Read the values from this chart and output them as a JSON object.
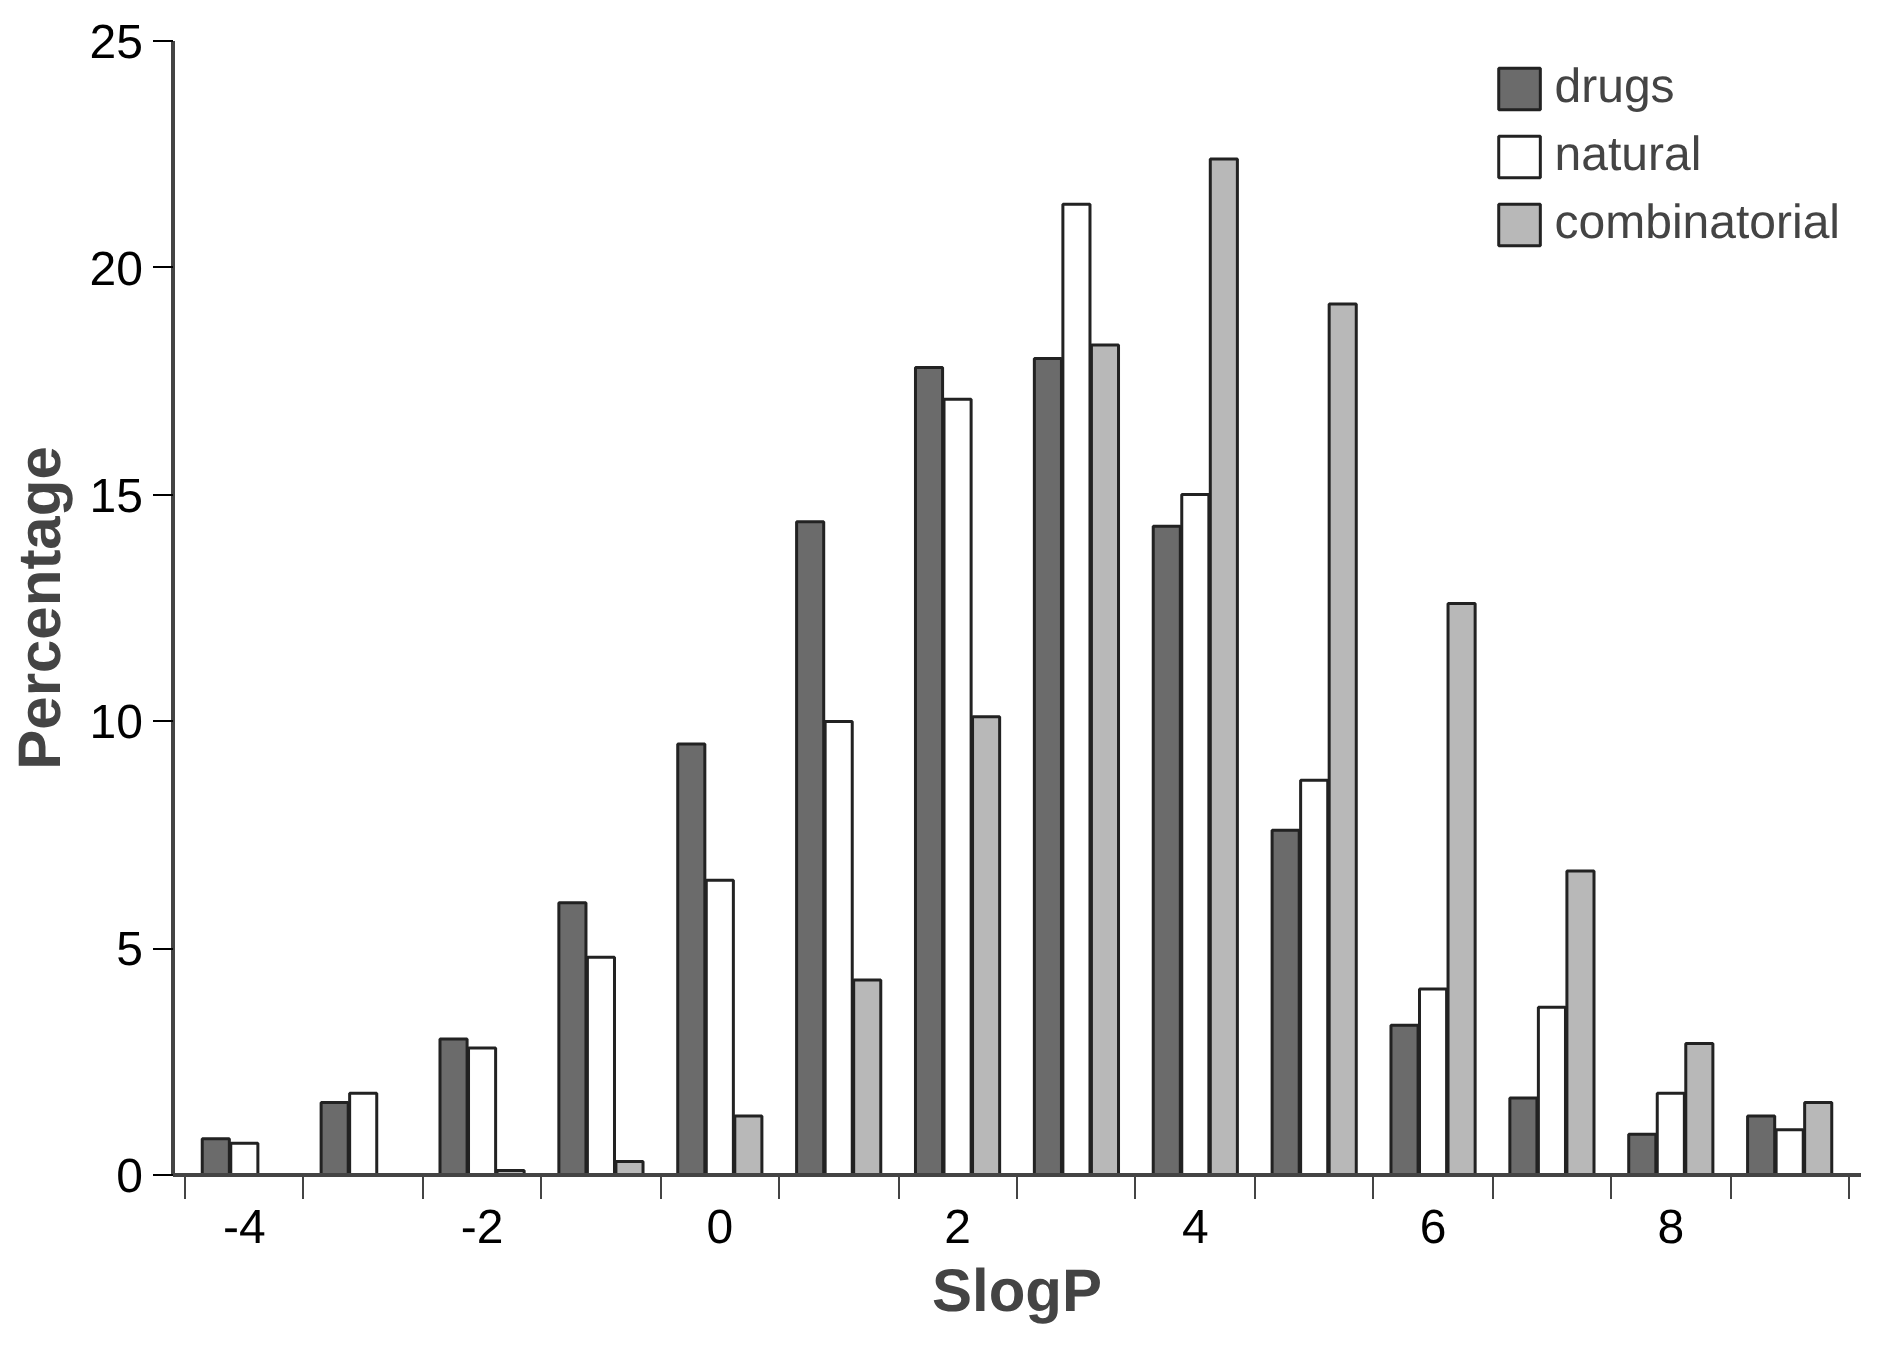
{
  "chart_data": {
    "type": "bar",
    "xlabel": "SlogP",
    "ylabel": "Percentage",
    "categories": [
      "-4",
      null,
      "-2",
      null,
      "0",
      null,
      "2",
      null,
      "4",
      null,
      "6",
      null,
      "8",
      null
    ],
    "series": [
      {
        "name": "drugs",
        "color": "#6b6b6b",
        "values": [
          0.8,
          1.6,
          3.0,
          6.0,
          9.5,
          14.4,
          17.8,
          18.0,
          14.3,
          7.6,
          3.3,
          1.7,
          0.9,
          1.3
        ]
      },
      {
        "name": "natural",
        "color": "#ffffff",
        "values": [
          0.7,
          1.8,
          2.8,
          4.8,
          6.5,
          10.0,
          17.1,
          21.4,
          15.0,
          8.7,
          4.1,
          3.7,
          1.8,
          1.0
        ]
      },
      {
        "name": "combinatorial",
        "color": "#b8b8b8",
        "values": [
          null,
          null,
          0.1,
          0.3,
          1.3,
          4.3,
          10.1,
          18.3,
          22.4,
          19.2,
          12.6,
          6.7,
          2.9,
          1.6
        ]
      }
    ],
    "ylim": [
      0,
      25
    ],
    "yticks": [
      0,
      5,
      10,
      15,
      20,
      25
    ],
    "grid": false,
    "legend": "top right"
  }
}
